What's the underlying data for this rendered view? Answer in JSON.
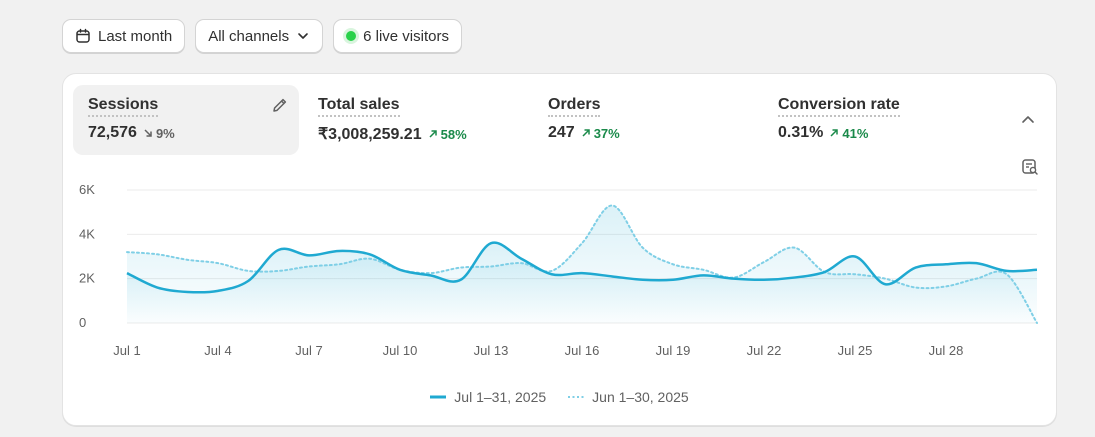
{
  "toolbar": {
    "date_range": "Last month",
    "channel": "All channels",
    "live_visitors": "6 live visitors"
  },
  "metrics": [
    {
      "label": "Sessions",
      "value": "72,576",
      "change": "9%",
      "direction": "down"
    },
    {
      "label": "Total sales",
      "value": "₹3,008,259.21",
      "change": "58%",
      "direction": "up"
    },
    {
      "label": "Orders",
      "value": "247",
      "change": "37%",
      "direction": "up"
    },
    {
      "label": "Conversion rate",
      "value": "0.31%",
      "change": "41%",
      "direction": "up"
    }
  ],
  "colors": {
    "accent": "#1fa9d1",
    "previous": "#7fcfe6",
    "up": "#1a8a4a",
    "live": "#29d14a"
  },
  "chart_data": {
    "type": "line",
    "y_ticks": [
      "0",
      "2K",
      "4K",
      "6K"
    ],
    "ylim": [
      0,
      6000
    ],
    "x_ticks": [
      {
        "label": "Jul 1",
        "day": 1
      },
      {
        "label": "Jul 4",
        "day": 4
      },
      {
        "label": "Jul 7",
        "day": 7
      },
      {
        "label": "Jul 10",
        "day": 10
      },
      {
        "label": "Jul 13",
        "day": 13
      },
      {
        "label": "Jul 16",
        "day": 16
      },
      {
        "label": "Jul 19",
        "day": 19
      },
      {
        "label": "Jul 22",
        "day": 22
      },
      {
        "label": "Jul 25",
        "day": 25
      },
      {
        "label": "Jul 28",
        "day": 28
      }
    ],
    "x_range": [
      1,
      31
    ],
    "grid": true,
    "legend_position": "bottom",
    "series": [
      {
        "name": "Jul 1–31, 2025",
        "style": "solid",
        "values": [
          2250,
          1600,
          1400,
          1450,
          1900,
          3300,
          3050,
          3250,
          3100,
          2400,
          2150,
          1950,
          3600,
          2900,
          2200,
          2250,
          2100,
          1950,
          1950,
          2150,
          2000,
          1950,
          2050,
          2300,
          3000,
          1750,
          2500,
          2650,
          2700,
          2350,
          2400
        ]
      },
      {
        "name": "Jun 1–30, 2025",
        "style": "dotted",
        "values": [
          3200,
          3100,
          2850,
          2700,
          2350,
          2350,
          2550,
          2650,
          2900,
          2400,
          2250,
          2500,
          2550,
          2700,
          2350,
          3600,
          5300,
          3400,
          2650,
          2400,
          2050,
          2750,
          3400,
          2300,
          2200,
          2000,
          1600,
          1650,
          2000,
          2200,
          0
        ]
      }
    ]
  }
}
